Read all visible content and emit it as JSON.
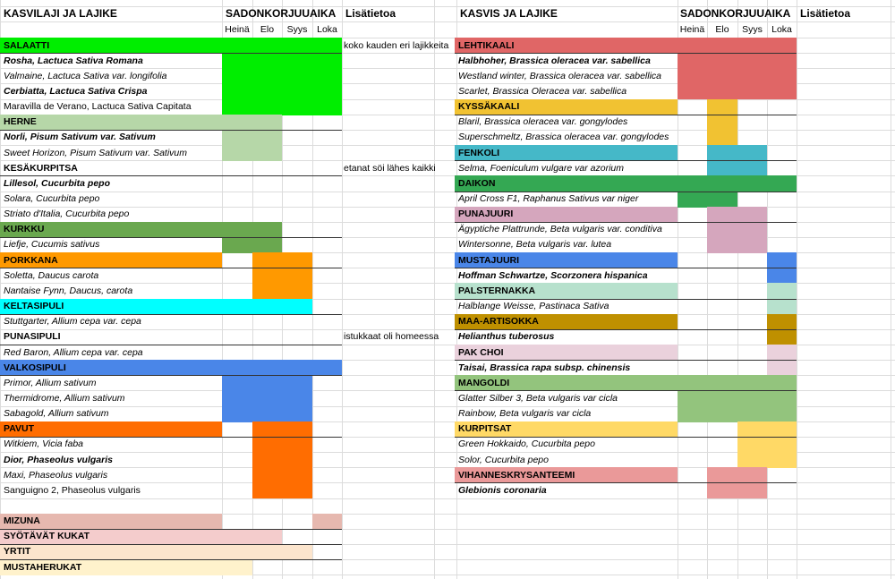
{
  "headers": {
    "left": {
      "crop": "KASVILAJI JA LAJIKE",
      "harvest": "SADONKORJUUAIKA",
      "info": "Lisätietoa"
    },
    "right": {
      "crop": "KASVIS JA LAJIKE",
      "harvest": "SADONKORJUUAIKA",
      "info": "Lisätietoa"
    },
    "months": [
      "Heinä",
      "Elo",
      "Syys",
      "Loka"
    ]
  },
  "left_rows": [
    {
      "text": "SALAATTI",
      "style": "cat",
      "color": "#00ee00",
      "labelFill": true,
      "months": [
        1,
        1,
        1,
        1
      ],
      "note": "koko kauden eri lajikkeita"
    },
    {
      "text": "Rosha, Lactuca Sativa Romana",
      "style": "varb",
      "color": "#00ee00",
      "months": [
        1,
        1,
        1,
        1
      ],
      "sep": true
    },
    {
      "text": "Valmaine, Lactuca Sativa var. longifolia",
      "style": "var",
      "color": "#00ee00",
      "months": [
        1,
        1,
        1,
        1
      ]
    },
    {
      "text": "Cerbiatta, Lactuca Sativa Crispa",
      "style": "varb",
      "color": "#00ee00",
      "months": [
        1,
        1,
        1,
        1
      ]
    },
    {
      "text": "Maravilla de Verano, Lactuca Sativa Capitata",
      "style": "plain",
      "color": "#00ee00",
      "months": [
        1,
        1,
        1,
        1
      ]
    },
    {
      "text": "HERNE",
      "style": "cat",
      "color": "#b6d7a8",
      "labelFill": true,
      "months": [
        1,
        1,
        0,
        0
      ]
    },
    {
      "text": "Norli, Pisum Sativum var. Sativum",
      "style": "varb",
      "color": "#b6d7a8",
      "months": [
        1,
        1,
        0,
        0
      ],
      "sep": true
    },
    {
      "text": "Sweet Horizon, Pisum Sativum var. Sativum",
      "style": "var",
      "color": "#b6d7a8",
      "months": [
        1,
        1,
        0,
        0
      ]
    },
    {
      "text": "KESÄKURPITSA",
      "style": "plainb",
      "color": "",
      "months": [
        0,
        0,
        0,
        0
      ],
      "note": "etanat söi lähes kaikki"
    },
    {
      "text": "Lillesol, Cucurbita pepo",
      "style": "varb",
      "color": "",
      "months": [
        0,
        0,
        0,
        0
      ],
      "sep": true
    },
    {
      "text": "Solara, Cucurbita pepo",
      "style": "var",
      "color": "",
      "months": [
        0,
        0,
        0,
        0
      ]
    },
    {
      "text": "Striato d'Italia, Cucurbita pepo",
      "style": "var",
      "color": "",
      "months": [
        0,
        0,
        0,
        0
      ]
    },
    {
      "text": "KURKKU",
      "style": "cat",
      "color": "#6aa84f",
      "labelFill": true,
      "months": [
        1,
        1,
        0,
        0
      ]
    },
    {
      "text": "Liefje, Cucumis sativus",
      "style": "var",
      "color": "#6aa84f",
      "months": [
        1,
        1,
        0,
        0
      ],
      "sep": true
    },
    {
      "text": "PORKKANA",
      "style": "cat",
      "color": "#ff9900",
      "labelFill": true,
      "months": [
        0,
        1,
        1,
        0
      ]
    },
    {
      "text": "Soletta, Daucus carota",
      "style": "var",
      "color": "#ff9900",
      "months": [
        0,
        1,
        1,
        0
      ],
      "sep": true
    },
    {
      "text": "Nantaise Fynn, Daucus, carota",
      "style": "var",
      "color": "#ff9900",
      "months": [
        0,
        1,
        1,
        0
      ]
    },
    {
      "text": "KELTASIPULI",
      "style": "cat",
      "color": "#00ffff",
      "labelFill": true,
      "months": [
        1,
        1,
        1,
        0
      ]
    },
    {
      "text": "Stuttgarter, Allium cepa var. cepa",
      "style": "var",
      "color": "",
      "months": [
        0,
        0,
        0,
        0
      ],
      "sep": true
    },
    {
      "text": "PUNASIPULI",
      "style": "plainb",
      "color": "",
      "months": [
        0,
        0,
        0,
        0
      ],
      "note": "istukkaat oli homeessa"
    },
    {
      "text": "Red Baron, Allium cepa var. cepa",
      "style": "var",
      "color": "",
      "months": [
        0,
        0,
        0,
        0
      ],
      "sep": true
    },
    {
      "text": "VALKOSIPULI",
      "style": "cat",
      "color": "#4a86e8",
      "labelFill": true,
      "months": [
        1,
        1,
        1,
        1
      ]
    },
    {
      "text": "Primor, Allium sativum",
      "style": "var",
      "color": "#4a86e8",
      "months": [
        1,
        1,
        1,
        0
      ],
      "sep": true
    },
    {
      "text": "Thermidrome, Allium sativum",
      "style": "var",
      "color": "#4a86e8",
      "months": [
        1,
        1,
        1,
        0
      ]
    },
    {
      "text": "Sabagold, Allium sativum",
      "style": "var",
      "color": "#4a86e8",
      "months": [
        1,
        1,
        1,
        0
      ]
    },
    {
      "text": "PAVUT",
      "style": "cat",
      "color": "#ff6d01",
      "labelFill": true,
      "months": [
        0,
        1,
        1,
        0
      ]
    },
    {
      "text": "Witkiem, Vicia faba",
      "style": "var",
      "color": "#ff6d01",
      "months": [
        0,
        1,
        1,
        0
      ],
      "sep": true
    },
    {
      "text": "Dior, Phaseolus vulgaris",
      "style": "varb",
      "color": "#ff6d01",
      "months": [
        0,
        1,
        1,
        0
      ]
    },
    {
      "text": "Maxi, Phaseolus vulgaris",
      "style": "var",
      "color": "#ff6d01",
      "months": [
        0,
        1,
        1,
        0
      ]
    },
    {
      "text": "Sanguigno 2, Phaseolus vulgaris",
      "style": "plain",
      "color": "#ff6d01",
      "months": [
        0,
        1,
        1,
        0
      ]
    },
    {
      "text": "",
      "style": "plain",
      "color": "",
      "months": [
        0,
        0,
        0,
        0
      ]
    },
    {
      "text": "MIZUNA",
      "style": "cat",
      "color": "#e6b8af",
      "labelFill": true,
      "months": [
        0,
        0,
        0,
        1
      ]
    },
    {
      "text": "SYÖTÄVÄT KUKAT",
      "style": "cat",
      "color": "#f4cccc",
      "labelFill": true,
      "months": [
        1,
        1,
        0,
        0
      ],
      "sep": true
    },
    {
      "text": "YRTIT",
      "style": "cat",
      "color": "#fce5cd",
      "labelFill": true,
      "months": [
        1,
        1,
        1,
        0
      ],
      "sep": true
    },
    {
      "text": "MUSTAHERUKAT",
      "style": "cat",
      "color": "#fff2cc",
      "labelFill": true,
      "months": [
        1,
        0,
        0,
        0
      ],
      "sep": true
    }
  ],
  "right_rows": [
    {
      "text": "LEHTIKAALI",
      "style": "cat",
      "color": "#e06666",
      "labelFill": true,
      "months": [
        1,
        1,
        1,
        1
      ]
    },
    {
      "text": "Halbhoher, Brassica oleracea var. sabellica",
      "style": "varb",
      "color": "#e06666",
      "months": [
        1,
        1,
        1,
        1
      ],
      "sep": true
    },
    {
      "text": "Westland winter, Brassica oleracea var. sabellica",
      "style": "var",
      "color": "#e06666",
      "months": [
        1,
        1,
        1,
        1
      ]
    },
    {
      "text": "Scarlet, Brassica Oleracea var. sabellica",
      "style": "var",
      "color": "#e06666",
      "months": [
        1,
        1,
        1,
        1
      ]
    },
    {
      "text": "KYSSÄKAALI",
      "style": "cat",
      "color": "#f1c232",
      "labelFill": true,
      "months": [
        0,
        1,
        0,
        0
      ]
    },
    {
      "text": "Blaril, Brassica oleracea var. gongylodes",
      "style": "var",
      "color": "#f1c232",
      "months": [
        0,
        1,
        0,
        0
      ],
      "sep": true
    },
    {
      "text": "Superschmeltz, Brassica oleracea var. gongylodes",
      "style": "var",
      "color": "#f1c232",
      "months": [
        0,
        1,
        0,
        0
      ]
    },
    {
      "text": "FENKOLI",
      "style": "cat",
      "color": "#45b8c8",
      "labelFill": true,
      "months": [
        0,
        1,
        1,
        0
      ]
    },
    {
      "text": "Selma, Foeniculum vulgare var azorium",
      "style": "var",
      "color": "#45b8c8",
      "months": [
        0,
        1,
        1,
        0
      ],
      "sep": true
    },
    {
      "text": "DAIKON",
      "style": "cat",
      "color": "#34a853",
      "labelFill": true,
      "months": [
        1,
        1,
        1,
        1
      ]
    },
    {
      "text": "April Cross F1, Raphanus Sativus var niger",
      "style": "var",
      "color": "#34a853",
      "months": [
        1,
        1,
        0,
        0
      ],
      "sep": true
    },
    {
      "text": "PUNAJUURI",
      "style": "cat",
      "color": "#d5a6bd",
      "labelFill": true,
      "months": [
        0,
        1,
        1,
        0
      ]
    },
    {
      "text": "Ägyptiche Plattrunde, Beta vulgaris var. conditiva",
      "style": "var",
      "color": "#d5a6bd",
      "months": [
        0,
        1,
        1,
        0
      ],
      "sep": true
    },
    {
      "text": "Wintersonne, Beta vulgaris var. lutea",
      "style": "var",
      "color": "#d5a6bd",
      "months": [
        0,
        1,
        1,
        0
      ]
    },
    {
      "text": "MUSTAJUURI",
      "style": "cat",
      "color": "#4a86e8",
      "labelFill": true,
      "months": [
        0,
        0,
        0,
        1
      ]
    },
    {
      "text": "Hoffman Schwartze, Scorzonera hispanica",
      "style": "varb",
      "color": "#4a86e8",
      "months": [
        0,
        0,
        0,
        1
      ],
      "sep": true
    },
    {
      "text": "PALSTERNAKKA",
      "style": "cat",
      "color": "#b7e1cd",
      "labelFill": true,
      "months": [
        0,
        0,
        0,
        1
      ]
    },
    {
      "text": "Halblange Weisse, Pastinaca Sativa",
      "style": "var",
      "color": "#b7e1cd",
      "months": [
        0,
        0,
        0,
        1
      ],
      "sep": true
    },
    {
      "text": "MAA-ARTISOKKA",
      "style": "cat",
      "color": "#bf9000",
      "labelFill": true,
      "months": [
        0,
        0,
        0,
        1
      ]
    },
    {
      "text": "Helianthus tuberosus",
      "style": "varb",
      "color": "#bf9000",
      "months": [
        0,
        0,
        0,
        1
      ],
      "sep": true
    },
    {
      "text": "PAK CHOI",
      "style": "cat",
      "color": "#ead1dc",
      "labelFill": true,
      "months": [
        0,
        0,
        0,
        1
      ]
    },
    {
      "text": "Taisai, Brassica rapa subsp. chinensis",
      "style": "varb",
      "color": "#ead1dc",
      "months": [
        0,
        0,
        0,
        1
      ],
      "sep": true
    },
    {
      "text": "MANGOLDI",
      "style": "cat",
      "color": "#93c47d",
      "labelFill": true,
      "months": [
        1,
        1,
        1,
        1
      ]
    },
    {
      "text": "Glatter Silber 3, Beta vulgaris var cicla",
      "style": "var",
      "color": "#93c47d",
      "months": [
        1,
        1,
        1,
        1
      ],
      "sep": true
    },
    {
      "text": "Rainbow, Beta vulgaris var cicla",
      "style": "var",
      "color": "#93c47d",
      "months": [
        1,
        1,
        1,
        1
      ]
    },
    {
      "text": "KURPITSAT",
      "style": "cat",
      "color": "#ffd966",
      "labelFill": true,
      "months": [
        0,
        0,
        1,
        1
      ]
    },
    {
      "text": "Green Hokkaido, Cucurbita pepo",
      "style": "var",
      "color": "#ffd966",
      "months": [
        0,
        0,
        1,
        1
      ],
      "sep": true
    },
    {
      "text": "Solor, Cucurbita pepo",
      "style": "var",
      "color": "#ffd966",
      "months": [
        0,
        0,
        1,
        1
      ]
    },
    {
      "text": "VIHANNESKRYSANTEEMI",
      "style": "cat",
      "color": "#ea9999",
      "labelFill": true,
      "months": [
        0,
        1,
        1,
        0
      ]
    },
    {
      "text": "Glebionis coronaria",
      "style": "varb",
      "color": "#ea9999",
      "months": [
        0,
        1,
        1,
        0
      ],
      "sep": true
    }
  ]
}
